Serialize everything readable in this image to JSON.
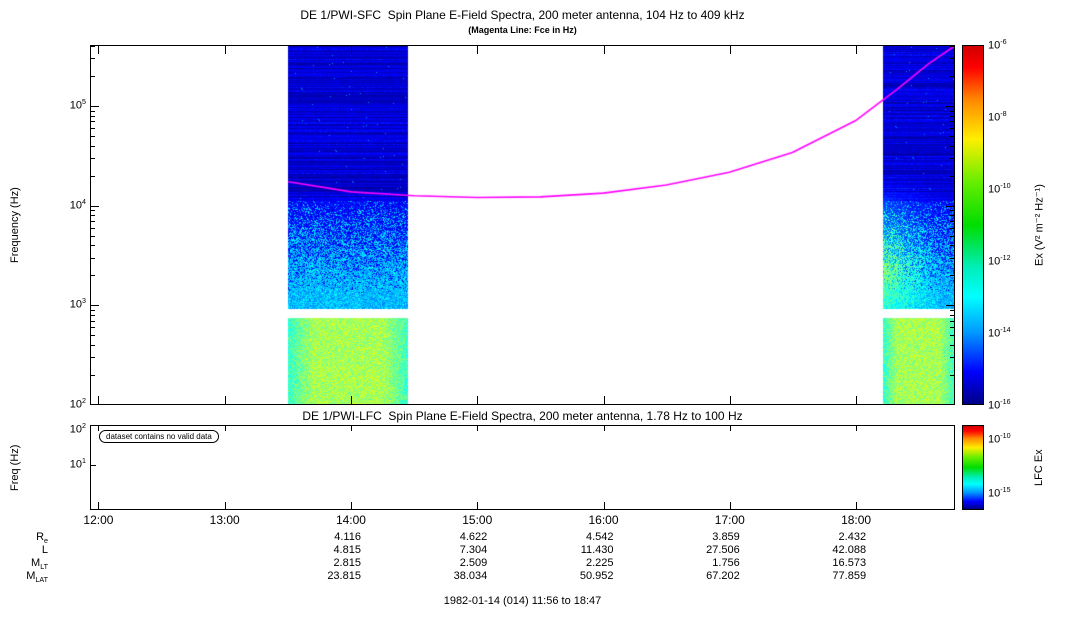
{
  "chart_data": [
    {
      "type": "heatmap",
      "title": "DE 1/PWI-SFC  Spin Plane E-Field Spectra, 200 meter antenna, 104 Hz to 409 kHz",
      "subtitle": "(Magenta Line: Fce in Hz)",
      "ylabel": "Frequency (Hz)",
      "y_scale": "log",
      "ylim_hz": [
        100,
        409000
      ],
      "y_ticks": [
        "10^2",
        "10^3",
        "10^4",
        "10^5"
      ],
      "x_start": "11:56",
      "x_end": "18:47",
      "x_ticks": [
        "12:00",
        "13:00",
        "14:00",
        "15:00",
        "16:00",
        "17:00",
        "18:00"
      ],
      "grid": false,
      "colorbar": {
        "label": "Ex (V² m⁻² Hz⁻¹)",
        "tick_labels": [
          "10^-6",
          "10^-8",
          "10^-10",
          "10^-12",
          "10^-14",
          "10^-16"
        ],
        "range_log10": [
          -16,
          -6
        ]
      },
      "no_data_gap_hz": [
        740,
        920
      ],
      "data_segments": [
        {
          "start": "13:30",
          "end": "14:27",
          "profile": "left"
        },
        {
          "start": "18:13",
          "end": "18:47",
          "profile": "right"
        }
      ],
      "fce_line": {
        "label": "Fce",
        "color": "#ff00ff",
        "points": [
          {
            "t": "13:30",
            "hz": 17500
          },
          {
            "t": "14:00",
            "hz": 13800
          },
          {
            "t": "14:30",
            "hz": 12600
          },
          {
            "t": "15:00",
            "hz": 12100
          },
          {
            "t": "15:30",
            "hz": 12300
          },
          {
            "t": "16:00",
            "hz": 13400
          },
          {
            "t": "16:30",
            "hz": 16200
          },
          {
            "t": "17:00",
            "hz": 21800
          },
          {
            "t": "17:30",
            "hz": 34500
          },
          {
            "t": "18:00",
            "hz": 72000
          },
          {
            "t": "18:20",
            "hz": 150000
          },
          {
            "t": "18:35",
            "hz": 272000
          },
          {
            "t": "18:47",
            "hz": 405000
          }
        ]
      }
    },
    {
      "type": "heatmap",
      "title": "DE 1/PWI-LFC  Spin Plane E-Field Spectra, 200 meter antenna, 1.78 Hz to 100 Hz",
      "ylabel": "Freq (Hz)",
      "y_scale": "log",
      "ylim_hz": [
        1.78,
        100
      ],
      "y_ticks": [
        "10^2",
        "10^1"
      ],
      "status_note": "dataset contains no valid data",
      "colorbar": {
        "label": "LFC Ex",
        "tick_labels": [
          "10^-10",
          "10^-15"
        ]
      },
      "data_segments": []
    }
  ],
  "ephemeris": {
    "tick_times": [
      "14:00",
      "15:00",
      "16:00",
      "17:00",
      "18:00"
    ],
    "rows": [
      {
        "label": "R",
        "sub": "e",
        "values": [
          "4.116",
          "4.622",
          "4.542",
          "3.859",
          "2.432"
        ]
      },
      {
        "label": "L",
        "sub": "",
        "values": [
          "4.815",
          "7.304",
          "11.430",
          "27.506",
          "42.088"
        ]
      },
      {
        "label": "M",
        "sub": "LT",
        "values": [
          "2.815",
          "2.509",
          "2.225",
          "1.756",
          "16.573"
        ]
      },
      {
        "label": "M",
        "sub": "LAT",
        "values": [
          "23.815",
          "38.034",
          "50.952",
          "67.202",
          "77.859"
        ]
      }
    ]
  },
  "footer": {
    "date_range": "1982-01-14 (014) 11:56 to 18:47"
  }
}
